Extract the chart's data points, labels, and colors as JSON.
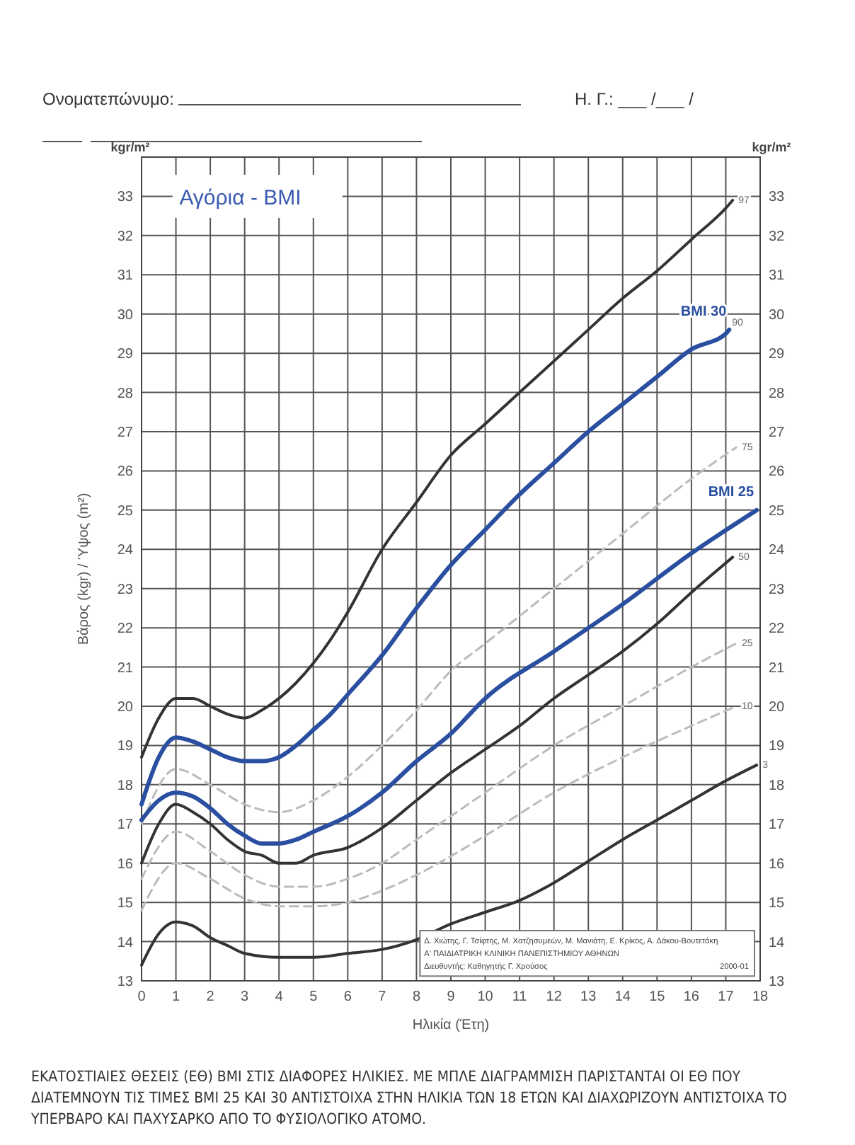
{
  "chart_data": {
    "type": "line",
    "title": "Αγόρια - BMI",
    "xlabel": "Ηλικία (Έτη)",
    "ylabel": "Βάρος (kgr) / Ύψος (m²)",
    "y2label": "kgr/m²",
    "xlim": [
      0,
      18
    ],
    "xticks": [
      0,
      1,
      2,
      3,
      4,
      5,
      6,
      7,
      8,
      9,
      10,
      11,
      12,
      13,
      14,
      15,
      16,
      17,
      18
    ],
    "ylim": [
      13,
      34
    ],
    "yticks": [
      13,
      14,
      15,
      16,
      17,
      18,
      19,
      20,
      21,
      22,
      23,
      24,
      25,
      26,
      27,
      28,
      29,
      30,
      31,
      32,
      33
    ],
    "y2lim": [
      13,
      34
    ],
    "y2ticks": [
      13,
      14,
      15,
      16,
      17,
      18,
      19,
      20,
      21,
      22,
      23,
      24,
      25,
      26,
      27,
      28,
      29,
      30,
      31,
      32,
      33
    ],
    "grid": true,
    "series": [
      {
        "name": "97",
        "color": "#333333",
        "x": [
          0,
          0.5,
          1,
          1.5,
          2,
          2.5,
          3,
          3.5,
          4,
          4.5,
          5,
          5.5,
          6,
          7,
          8,
          9,
          10,
          11,
          12,
          13,
          14,
          15,
          16,
          17,
          17.2
        ],
        "values": [
          18.7,
          19.7,
          20.2,
          20.2,
          20.0,
          19.8,
          19.7,
          19.9,
          20.2,
          20.6,
          21.1,
          21.7,
          22.4,
          24.0,
          25.2,
          26.4,
          27.2,
          28.0,
          28.8,
          29.6,
          30.4,
          31.1,
          31.9,
          32.7,
          32.9
        ]
      },
      {
        "name": "BMI 30",
        "color": "#2a4fa0",
        "x": [
          0,
          0.5,
          1,
          1.5,
          2,
          2.5,
          3,
          3.5,
          4,
          4.5,
          5,
          5.5,
          6,
          7,
          8,
          9,
          10,
          11,
          12,
          13,
          14,
          15,
          16,
          17,
          17.1
        ],
        "values": [
          17.5,
          18.7,
          19.2,
          19.1,
          18.9,
          18.7,
          18.6,
          18.6,
          18.7,
          19.0,
          19.4,
          19.8,
          20.3,
          21.3,
          22.5,
          23.6,
          24.5,
          25.4,
          26.2,
          27.0,
          27.7,
          28.4,
          29.1,
          29.5,
          29.6
        ]
      },
      {
        "name": "75",
        "color": "#bbbbbb",
        "line_style": "dashed",
        "x": [
          0,
          1,
          2,
          3,
          4,
          5,
          6,
          7,
          8,
          9,
          10,
          12,
          14,
          16,
          17.3
        ],
        "values": [
          17.0,
          18.4,
          18.0,
          17.5,
          17.3,
          17.6,
          18.2,
          19.0,
          19.9,
          20.9,
          21.6,
          23.0,
          24.4,
          25.8,
          26.6
        ]
      },
      {
        "name": "50",
        "color": "#333333",
        "x": [
          0,
          0.5,
          1,
          1.5,
          2,
          2.5,
          3,
          3.5,
          4,
          4.5,
          5,
          6,
          7,
          8,
          9,
          10,
          11,
          12,
          13,
          14,
          15,
          16,
          17.2
        ],
        "values": [
          16.0,
          17.0,
          17.5,
          17.3,
          17.0,
          16.6,
          16.3,
          16.2,
          16.0,
          16.0,
          16.2,
          16.4,
          16.9,
          17.6,
          18.3,
          18.9,
          19.5,
          20.2,
          20.8,
          21.4,
          22.1,
          22.9,
          23.8
        ]
      },
      {
        "name": "BMI 25",
        "color": "#2a4fa0",
        "x": [
          0,
          0.5,
          1,
          1.5,
          2,
          2.5,
          3,
          3.5,
          4,
          4.5,
          5,
          6,
          7,
          8,
          9,
          10,
          12,
          14,
          16,
          17.9
        ],
        "values": [
          17.1,
          17.6,
          17.8,
          17.7,
          17.4,
          17.0,
          16.7,
          16.5,
          16.5,
          16.6,
          16.8,
          17.2,
          17.8,
          18.6,
          19.3,
          20.2,
          21.4,
          22.6,
          23.9,
          25.0
        ]
      },
      {
        "name": "25",
        "color": "#bbbbbb",
        "line_style": "dashed",
        "x": [
          0,
          1,
          2,
          3,
          4,
          5,
          6,
          7,
          8,
          10,
          12,
          14,
          16,
          17.3
        ],
        "values": [
          15.6,
          16.8,
          16.3,
          15.7,
          15.4,
          15.4,
          15.6,
          16.0,
          16.6,
          17.8,
          19.0,
          20.0,
          21.0,
          21.6
        ]
      },
      {
        "name": "10",
        "color": "#bbbbbb",
        "line_style": "dashed",
        "x": [
          0,
          1,
          2,
          3,
          4,
          5,
          6,
          7,
          8,
          10,
          12,
          14,
          16,
          17.3
        ],
        "values": [
          14.8,
          16.0,
          15.6,
          15.1,
          14.9,
          14.9,
          15.0,
          15.3,
          15.7,
          16.7,
          17.8,
          18.7,
          19.5,
          20.0
        ]
      },
      {
        "name": "3",
        "color": "#333333",
        "x": [
          0,
          0.5,
          1,
          1.5,
          2,
          2.5,
          3,
          4,
          5,
          6,
          7,
          8,
          9,
          10,
          11,
          12,
          13,
          14,
          15,
          16,
          17,
          17.9
        ],
        "values": [
          13.4,
          14.2,
          14.5,
          14.4,
          14.1,
          13.9,
          13.7,
          13.6,
          13.6,
          13.7,
          13.8,
          14.05,
          14.45,
          14.75,
          15.05,
          15.5,
          16.05,
          16.6,
          17.1,
          17.6,
          18.1,
          18.5
        ]
      }
    ],
    "annotations": [
      "Ονοματεπώνυμο:",
      "Η. Γ.: ___ /___ /",
      "kgr/m²",
      {
        "text": "90",
        "x": 17.1,
        "y": 29.6
      },
      "Δ. Χιώτης, Γ. Τσίφτης, Μ. Χατζησυμεών, Μ. Μανιάτη, Ε. Κρίκος, Α. Δάκου-Βουτετάκη",
      "Α' ΠΑΙΔΙΑΤΡΙΚΗ ΚΛΙΝΙΚΗ ΠΑΝΕΠΙΣΤΗΜΙΟΥ ΑΘΗΝΩΝ",
      "Διευθυντής: Καθηγητής Γ. Χρούσος",
      "2000-01",
      "ΕΚΑΤΟΣΤΙΑΙΕΣ ΘΕΣΕΙΣ (ΕΘ) BMI ΣΤΙΣ ΔΙΑΦΟΡΕΣ ΗΛΙΚΙΕΣ. ΜΕ ΜΠΛΕ ΔΙΑΓΡΑΜΜΙΣΗ ΠΑΡΙΣΤΑΝΤΑΙ ΟΙ ΕΘ ΠΟΥ ΔΙΑΤΕΜΝΟΥΝ ΤΙΣ ΤΙΜΕΣ BMI 25 ΚΑΙ 30 ΑΝΤΙΣΤΟΙΧΑ ΣΤΗΝ ΗΛΙΚΙΑ ΤΩΝ 18 ΕΤΩΝ ΚΑΙ ΔΙΑΧΩΡΙΖΟΥΝ ΑΝΤΙΣΤΟΙΧΑ ΤΟ ΥΠΕΡΒΑΡΟ ΚΑΙ ΠΑΧΥΣΑΡΚΟ ΑΠΟ ΤΟ ΦΥΣΙΟΛΟΓΙΚΟ ΑΤΟΜΟ."
    ]
  }
}
